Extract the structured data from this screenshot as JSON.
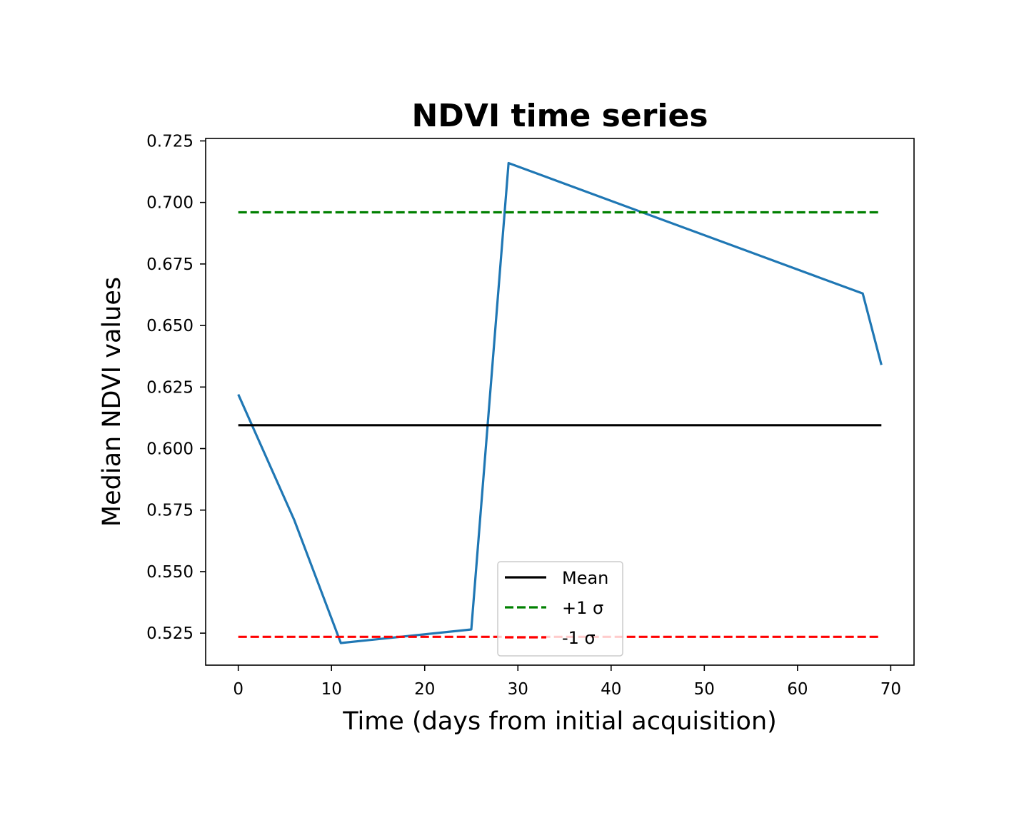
{
  "chart_data": {
    "type": "line",
    "title": "NDVI time series",
    "xlabel": "Time (days from initial acquisition)",
    "ylabel": "Median NDVI values",
    "xlim": [
      -3.5,
      72.5
    ],
    "ylim": [
      0.512,
      0.726
    ],
    "xticks": [
      0,
      10,
      20,
      30,
      40,
      50,
      60,
      70
    ],
    "yticks": [
      0.525,
      0.55,
      0.575,
      0.6,
      0.625,
      0.65,
      0.675,
      0.7,
      0.725
    ],
    "xtick_labels": [
      "0",
      "10",
      "20",
      "30",
      "40",
      "50",
      "60",
      "70"
    ],
    "ytick_labels": [
      "0.525",
      "0.550",
      "0.575",
      "0.600",
      "0.625",
      "0.650",
      "0.675",
      "0.700",
      "0.725"
    ],
    "grid": false,
    "legend_position": "lower-center",
    "series": [
      {
        "x": [
          0,
          6,
          11,
          25,
          29,
          67,
          69
        ],
        "y": [
          0.622,
          0.571,
          0.521,
          0.5265,
          0.716,
          0.663,
          0.634
        ],
        "color": "#1f77b4",
        "style": "solid"
      },
      {
        "name": "Mean",
        "x": [
          0,
          69
        ],
        "y": [
          0.6095,
          0.6095
        ],
        "color": "#000000",
        "style": "solid"
      },
      {
        "name": "+1 σ",
        "x": [
          0,
          69
        ],
        "y": [
          0.696,
          0.696
        ],
        "color": "#008000",
        "style": "dashed"
      },
      {
        "name": "-1 σ",
        "x": [
          0,
          69
        ],
        "y": [
          0.5235,
          0.5235
        ],
        "color": "#ff0000",
        "style": "dashed"
      }
    ],
    "legend": [
      {
        "label": "Mean",
        "color": "#000000",
        "style": "solid"
      },
      {
        "label": "+1 σ",
        "color": "#008000",
        "style": "dashed"
      },
      {
        "label": "-1 σ",
        "color": "#ff0000",
        "style": "dashed"
      }
    ]
  }
}
